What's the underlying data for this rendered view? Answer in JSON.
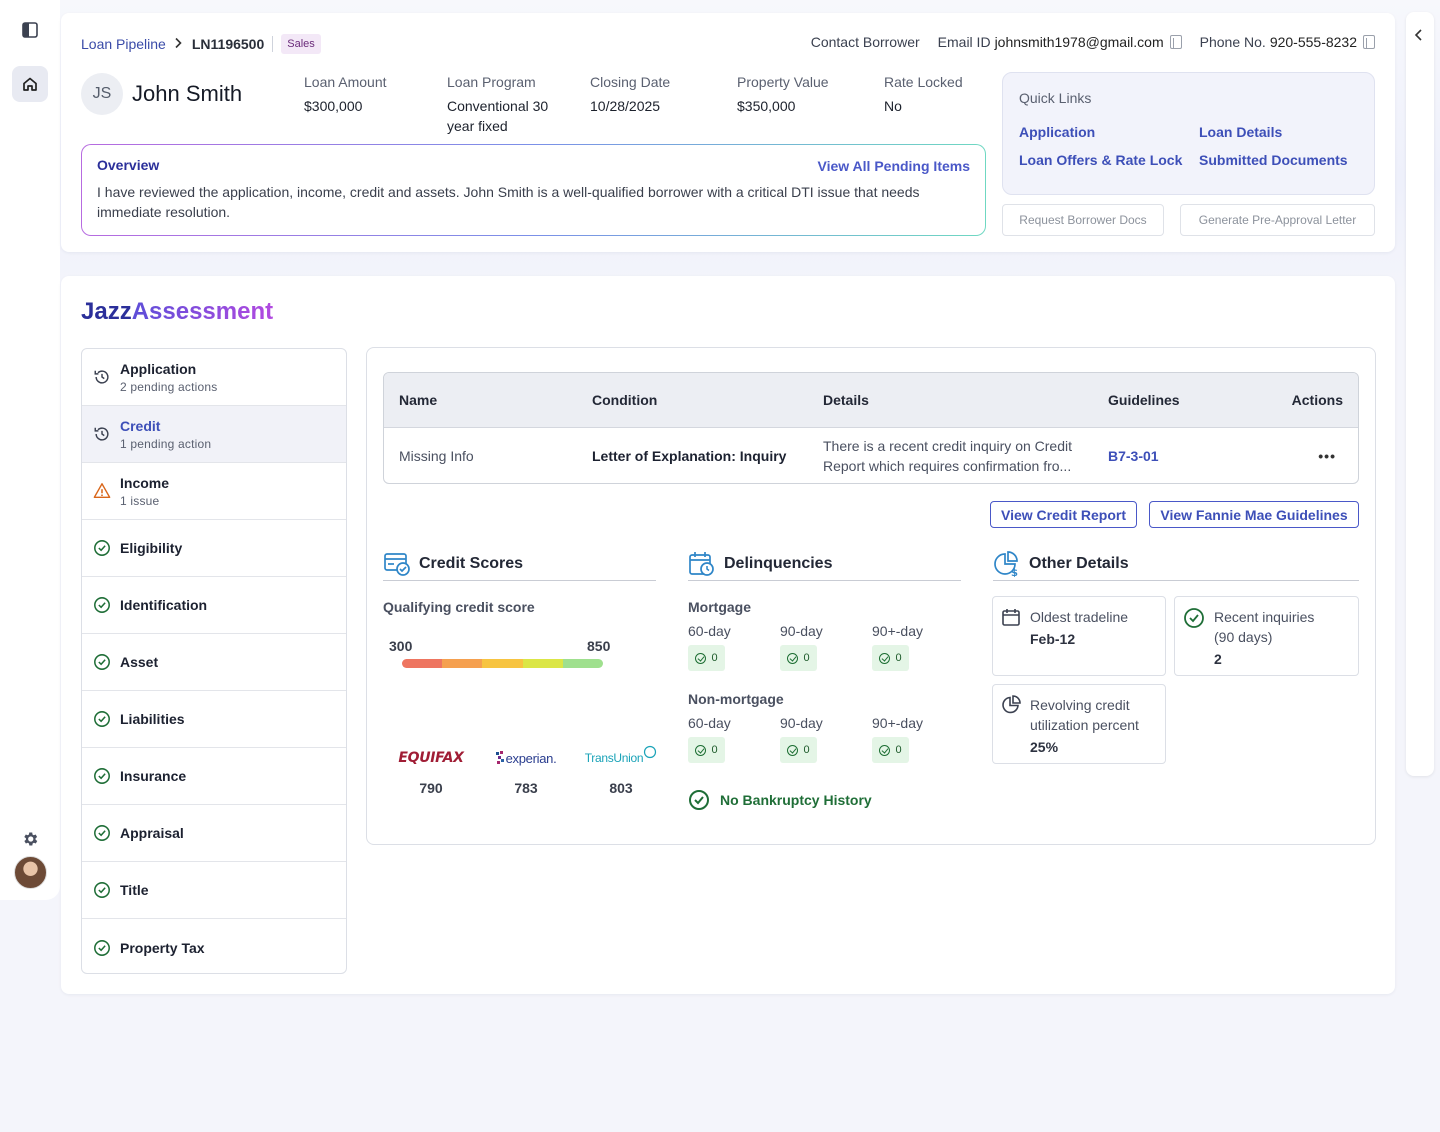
{
  "breadcrumb": {
    "pipeline": "Loan Pipeline",
    "loan_number": "LN1196500",
    "badge": "Sales"
  },
  "contact": {
    "contact_label": "Contact Borrower",
    "email_label": "Email ID",
    "email": "johnsmith1978@gmail.com",
    "phone_label": "Phone No.",
    "phone": "920-555-8232"
  },
  "borrower": {
    "initials": "JS",
    "name": "John Smith"
  },
  "metrics": [
    {
      "label": "Loan Amount",
      "value": "$300,000"
    },
    {
      "label": "Loan Program",
      "value": "Conventional 30 year fixed"
    },
    {
      "label": "Closing Date",
      "value": "10/28/2025"
    },
    {
      "label": "Property Value",
      "value": "$350,000"
    },
    {
      "label": "Rate Locked",
      "value": "No"
    }
  ],
  "overview": {
    "title": "Overview",
    "link": "View All Pending Items",
    "text": "I have reviewed the application, income, credit and assets. John Smith is a well-qualified borrower with a critical DTI issue that needs immediate resolution."
  },
  "quick_links": {
    "title": "Quick Links",
    "links": [
      "Application",
      "Loan Details",
      "Loan Offers & Rate Lock",
      "Submitted Documents"
    ]
  },
  "header_buttons": {
    "request_docs": "Request Borrower Docs",
    "pre_approval": "Generate Pre-Approval Letter"
  },
  "assessment": {
    "brand_a": "Jazz",
    "brand_b": "Assessment"
  },
  "sidebar": {
    "items": [
      {
        "label": "Application",
        "sub": "2 pending actions",
        "status": "pending"
      },
      {
        "label": "Credit",
        "sub": "1 pending action",
        "status": "pending"
      },
      {
        "label": "Income",
        "sub": "1 issue",
        "status": "issue"
      },
      {
        "label": "Eligibility",
        "status": "ok"
      },
      {
        "label": "Identification",
        "status": "ok"
      },
      {
        "label": "Asset",
        "status": "ok"
      },
      {
        "label": "Liabilities",
        "status": "ok"
      },
      {
        "label": "Insurance",
        "status": "ok"
      },
      {
        "label": "Appraisal",
        "status": "ok"
      },
      {
        "label": "Title",
        "status": "ok"
      },
      {
        "label": "Property Tax",
        "status": "ok"
      }
    ]
  },
  "table": {
    "headers": [
      "Name",
      "Condition",
      "Details",
      "Guidelines",
      "Actions"
    ],
    "rows": [
      {
        "name": "Missing Info",
        "condition": "Letter of Explanation: Inquiry",
        "details_1": "There is a recent credit inquiry on Credit",
        "details_2": "Report which requires confirmation fro...",
        "guideline": "B7-3-01",
        "action": "•••"
      }
    ]
  },
  "buttons": {
    "credit_report": "View Credit Report",
    "fannie_mae": "View Fannie Mae Guidelines"
  },
  "credit_scores": {
    "title": "Credit Scores",
    "qualifying_label": "Qualifying credit score",
    "min": "300",
    "max": "850",
    "bar_colors": [
      "#ee7560",
      "#f5a04f",
      "#f7c441",
      "#dbe646",
      "#9fe08e"
    ],
    "bureaus": [
      {
        "name": "EQUIFAX",
        "score": "790"
      },
      {
        "name": "experian.",
        "score": "783"
      },
      {
        "name": "TransUnion",
        "score": "803"
      }
    ]
  },
  "delinquencies": {
    "title": "Delinquencies",
    "groups": [
      {
        "label": "Mortgage",
        "cols": [
          "60-day",
          "90-day",
          "90+-day"
        ],
        "values": [
          "0",
          "0",
          "0"
        ]
      },
      {
        "label": "Non-mortgage",
        "cols": [
          "60-day",
          "90-day",
          "90+-day"
        ],
        "values": [
          "0",
          "0",
          "0"
        ]
      }
    ],
    "bankruptcy": "No Bankruptcy History"
  },
  "other_details": {
    "title": "Other Details",
    "oldest_label": "Oldest tradeline",
    "oldest_value": "Feb-12",
    "inquiries_label_1": "Recent inquiries",
    "inquiries_label_2": "(90 days)",
    "inquiries_value": "2",
    "revolving_label_1": "Revolving credit",
    "revolving_label_2": "utilization percent",
    "revolving_value": "25%"
  }
}
